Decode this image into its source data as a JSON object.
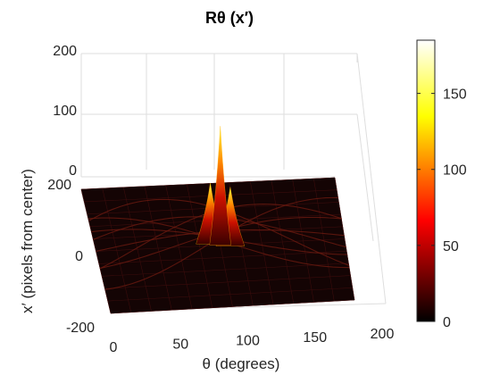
{
  "chart_data": {
    "type": "surface",
    "title": "Rθ (x′)",
    "xlabel": "θ (degrees)",
    "ylabel": "x′ (pixels from center)",
    "xlim": [
      0,
      180
    ],
    "ylim": [
      -200,
      200
    ],
    "zlim": [
      0,
      200
    ],
    "xticks": [
      "0",
      "50",
      "100",
      "150",
      "200"
    ],
    "yticks": [
      "-200",
      "0",
      "200"
    ],
    "zticks": [
      "0",
      "100",
      "200"
    ],
    "colormap": "hot",
    "colorbar": {
      "ticks": [
        "0",
        "50",
        "100",
        "150"
      ],
      "range": [
        0,
        185
      ]
    },
    "peak": {
      "theta": 90,
      "x_prime": 0,
      "value": 185
    },
    "secondary_peaks": [
      {
        "theta": 83,
        "x_prime": 5,
        "value": 95
      },
      {
        "theta": 97,
        "x_prime": -5,
        "value": 92
      }
    ],
    "grid": true
  },
  "colors": {
    "surface_base": "#140404",
    "grid": "#dedede",
    "axis": "#262626"
  }
}
